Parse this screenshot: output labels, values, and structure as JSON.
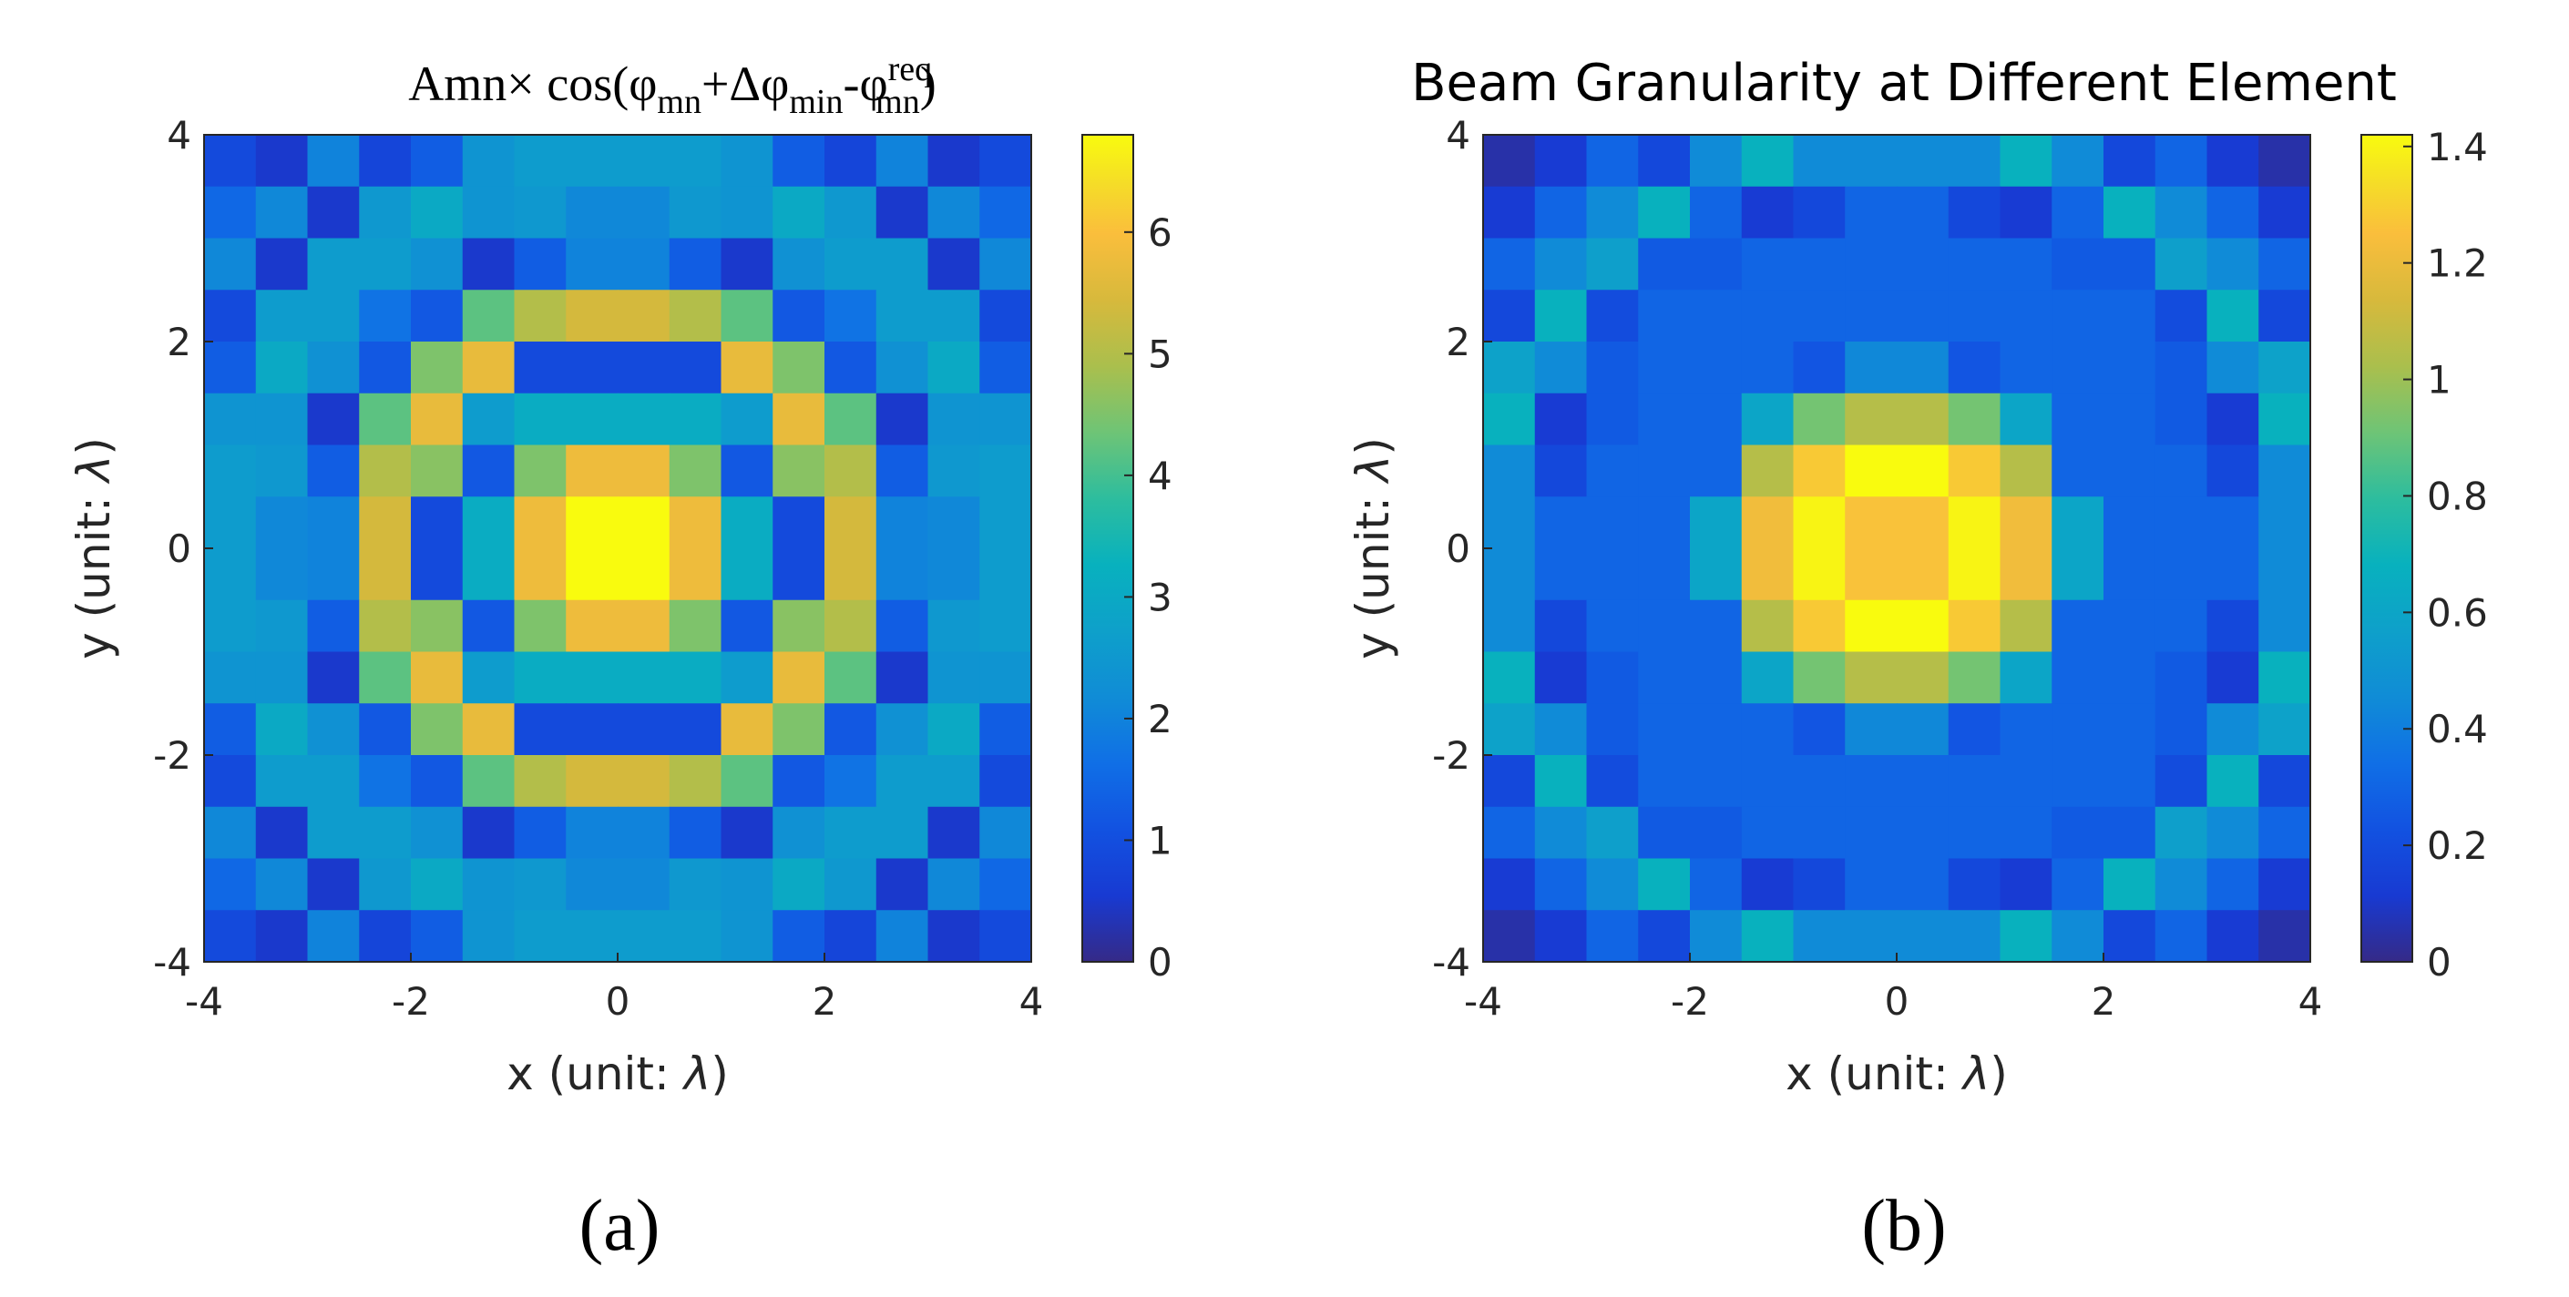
{
  "figure": {
    "panel_labels": [
      "(a)",
      "(b)"
    ]
  },
  "chart_data": [
    {
      "type": "heatmap",
      "title": {
        "main": "Amn",
        "times": "×",
        "cos": " cos(",
        "phi1": "φ",
        "sub1": "mn",
        "plus": "+Δ",
        "phi2": "φ",
        "sub2": "min",
        "minus": "-",
        "phi3": "φ",
        "sup3": "req",
        "sub3": "mn",
        "close": ")"
      },
      "xlabel": {
        "text": "x (unit: ",
        "sym": "λ",
        "end": ")"
      },
      "ylabel": {
        "text": "y (unit: ",
        "sym": "λ",
        "end": ")"
      },
      "xlim": [
        -4,
        4
      ],
      "ylim": [
        -4,
        4
      ],
      "xticks": [
        "-4",
        "-2",
        "0",
        "2",
        "4"
      ],
      "yticks": [
        "4",
        "2",
        "0",
        "-2",
        "-4"
      ],
      "clim": [
        0,
        6.8
      ],
      "colorbar_ticks": [
        {
          "value": 0,
          "label": "0"
        },
        {
          "value": 1,
          "label": "1"
        },
        {
          "value": 2,
          "label": "2"
        },
        {
          "value": 3,
          "label": "3"
        },
        {
          "value": 4,
          "label": "4"
        },
        {
          "value": 5,
          "label": "5"
        },
        {
          "value": 6,
          "label": "6"
        }
      ],
      "grid_size": 16,
      "rows_top_to_bottom": [
        [
          0.9,
          0.5,
          2.0,
          0.8,
          1.3,
          2.4,
          2.6,
          2.6,
          2.6,
          2.6,
          2.4,
          1.3,
          0.8,
          2.0,
          0.5,
          0.9
        ],
        [
          1.5,
          2.1,
          0.5,
          2.5,
          3.0,
          2.4,
          2.5,
          2.1,
          2.1,
          2.5,
          2.4,
          3.0,
          2.5,
          0.5,
          2.1,
          1.5
        ],
        [
          2.1,
          0.5,
          2.6,
          2.6,
          2.3,
          0.5,
          1.3,
          2.0,
          2.0,
          1.3,
          0.5,
          2.3,
          2.6,
          2.6,
          0.5,
          2.1
        ],
        [
          0.9,
          2.6,
          2.6,
          1.7,
          1.2,
          4.2,
          5.0,
          5.4,
          5.4,
          5.0,
          4.2,
          1.2,
          1.7,
          2.6,
          2.6,
          0.9
        ],
        [
          1.3,
          3.0,
          2.3,
          1.2,
          4.5,
          5.7,
          0.9,
          0.9,
          0.9,
          0.9,
          5.7,
          4.5,
          1.2,
          2.3,
          3.0,
          1.3
        ],
        [
          2.4,
          2.4,
          0.5,
          4.2,
          5.7,
          2.6,
          3.1,
          3.1,
          3.1,
          3.1,
          2.6,
          5.7,
          4.2,
          0.5,
          2.4,
          2.4
        ],
        [
          2.6,
          2.5,
          1.3,
          5.0,
          4.6,
          1.2,
          4.5,
          5.8,
          5.8,
          4.5,
          1.2,
          4.6,
          5.0,
          1.3,
          2.5,
          2.6
        ],
        [
          2.6,
          2.1,
          2.0,
          5.4,
          0.9,
          3.1,
          5.8,
          6.8,
          6.8,
          5.8,
          3.1,
          0.9,
          5.4,
          2.0,
          2.1,
          2.6
        ],
        [
          2.6,
          2.1,
          2.0,
          5.4,
          0.9,
          3.1,
          5.8,
          6.8,
          6.8,
          5.8,
          3.1,
          0.9,
          5.4,
          2.0,
          2.1,
          2.6
        ],
        [
          2.6,
          2.5,
          1.3,
          5.0,
          4.6,
          1.2,
          4.5,
          5.8,
          5.8,
          4.5,
          1.2,
          4.6,
          5.0,
          1.3,
          2.5,
          2.6
        ],
        [
          2.4,
          2.4,
          0.5,
          4.2,
          5.7,
          2.6,
          3.1,
          3.1,
          3.1,
          3.1,
          2.6,
          5.7,
          4.2,
          0.5,
          2.4,
          2.4
        ],
        [
          1.3,
          3.0,
          2.3,
          1.2,
          4.5,
          5.7,
          0.9,
          0.9,
          0.9,
          0.9,
          5.7,
          4.5,
          1.2,
          2.3,
          3.0,
          1.3
        ],
        [
          0.9,
          2.6,
          2.6,
          1.7,
          1.2,
          4.2,
          5.0,
          5.4,
          5.4,
          5.0,
          4.2,
          1.2,
          1.7,
          2.6,
          2.6,
          0.9
        ],
        [
          2.1,
          0.5,
          2.6,
          2.6,
          2.3,
          0.5,
          1.3,
          2.0,
          2.0,
          1.3,
          0.5,
          2.3,
          2.6,
          2.6,
          0.5,
          2.1
        ],
        [
          1.5,
          2.1,
          0.5,
          2.5,
          3.0,
          2.4,
          2.5,
          2.1,
          2.1,
          2.5,
          2.4,
          3.0,
          2.5,
          0.5,
          2.1,
          1.5
        ],
        [
          0.9,
          0.5,
          2.0,
          0.8,
          1.3,
          2.4,
          2.6,
          2.6,
          2.6,
          2.6,
          2.4,
          1.3,
          0.8,
          2.0,
          0.5,
          0.9
        ]
      ]
    },
    {
      "type": "heatmap",
      "title": "Beam Granularity at Different Element",
      "xlabel": {
        "text": "x (unit: ",
        "sym": "λ",
        "end": ")"
      },
      "ylabel": {
        "text": "y (unit: ",
        "sym": "λ",
        "end": ")"
      },
      "xlim": [
        -4,
        4
      ],
      "ylim": [
        -4,
        4
      ],
      "xticks": [
        "-4",
        "-2",
        "0",
        "2",
        "4"
      ],
      "yticks": [
        "4",
        "2",
        "0",
        "-2",
        "-4"
      ],
      "clim": [
        0,
        1.42
      ],
      "colorbar_ticks": [
        {
          "value": 0,
          "label": "0"
        },
        {
          "value": 0.2,
          "label": "0.2"
        },
        {
          "value": 0.4,
          "label": "0.4"
        },
        {
          "value": 0.6,
          "label": "0.6"
        },
        {
          "value": 0.8,
          "label": "0.8"
        },
        {
          "value": 1.0,
          "label": "1"
        },
        {
          "value": 1.2,
          "label": "1.2"
        },
        {
          "value": 1.4,
          "label": "1.4"
        }
      ],
      "grid_size": 16,
      "rows_top_to_bottom": [
        [
          0.05,
          0.12,
          0.3,
          0.18,
          0.45,
          0.68,
          0.45,
          0.45,
          0.45,
          0.45,
          0.68,
          0.45,
          0.18,
          0.3,
          0.12,
          0.05
        ],
        [
          0.12,
          0.3,
          0.45,
          0.68,
          0.3,
          0.12,
          0.18,
          0.3,
          0.3,
          0.18,
          0.12,
          0.3,
          0.68,
          0.45,
          0.3,
          0.12
        ],
        [
          0.3,
          0.45,
          0.56,
          0.26,
          0.26,
          0.3,
          0.3,
          0.3,
          0.3,
          0.3,
          0.3,
          0.26,
          0.26,
          0.56,
          0.45,
          0.3
        ],
        [
          0.18,
          0.68,
          0.2,
          0.3,
          0.3,
          0.3,
          0.3,
          0.3,
          0.3,
          0.3,
          0.3,
          0.3,
          0.3,
          0.2,
          0.68,
          0.18
        ],
        [
          0.58,
          0.45,
          0.26,
          0.3,
          0.3,
          0.3,
          0.24,
          0.44,
          0.44,
          0.24,
          0.3,
          0.3,
          0.3,
          0.26,
          0.45,
          0.58
        ],
        [
          0.68,
          0.12,
          0.26,
          0.3,
          0.3,
          0.6,
          0.92,
          1.05,
          1.05,
          0.92,
          0.6,
          0.3,
          0.3,
          0.26,
          0.12,
          0.68
        ],
        [
          0.45,
          0.18,
          0.3,
          0.3,
          0.3,
          1.05,
          1.28,
          1.42,
          1.42,
          1.28,
          1.05,
          0.3,
          0.3,
          0.3,
          0.18,
          0.45
        ],
        [
          0.45,
          0.3,
          0.3,
          0.3,
          0.6,
          1.22,
          1.4,
          1.26,
          1.26,
          1.4,
          1.22,
          0.6,
          0.3,
          0.3,
          0.3,
          0.45
        ],
        [
          0.45,
          0.3,
          0.3,
          0.3,
          0.6,
          1.22,
          1.4,
          1.26,
          1.26,
          1.4,
          1.22,
          0.6,
          0.3,
          0.3,
          0.3,
          0.45
        ],
        [
          0.45,
          0.18,
          0.3,
          0.3,
          0.3,
          1.05,
          1.28,
          1.42,
          1.42,
          1.28,
          1.05,
          0.3,
          0.3,
          0.3,
          0.18,
          0.45
        ],
        [
          0.68,
          0.12,
          0.26,
          0.3,
          0.3,
          0.6,
          0.92,
          1.05,
          1.05,
          0.92,
          0.6,
          0.3,
          0.3,
          0.26,
          0.12,
          0.68
        ],
        [
          0.58,
          0.45,
          0.26,
          0.3,
          0.3,
          0.3,
          0.24,
          0.44,
          0.44,
          0.24,
          0.3,
          0.3,
          0.3,
          0.26,
          0.45,
          0.58
        ],
        [
          0.18,
          0.68,
          0.2,
          0.3,
          0.3,
          0.3,
          0.3,
          0.3,
          0.3,
          0.3,
          0.3,
          0.3,
          0.3,
          0.2,
          0.68,
          0.18
        ],
        [
          0.3,
          0.45,
          0.56,
          0.26,
          0.26,
          0.3,
          0.3,
          0.3,
          0.3,
          0.3,
          0.3,
          0.26,
          0.26,
          0.56,
          0.45,
          0.3
        ],
        [
          0.12,
          0.3,
          0.45,
          0.68,
          0.3,
          0.12,
          0.18,
          0.3,
          0.3,
          0.18,
          0.12,
          0.3,
          0.68,
          0.45,
          0.3,
          0.12
        ],
        [
          0.05,
          0.12,
          0.3,
          0.18,
          0.45,
          0.68,
          0.45,
          0.45,
          0.45,
          0.45,
          0.68,
          0.45,
          0.18,
          0.3,
          0.12,
          0.05
        ]
      ]
    }
  ]
}
